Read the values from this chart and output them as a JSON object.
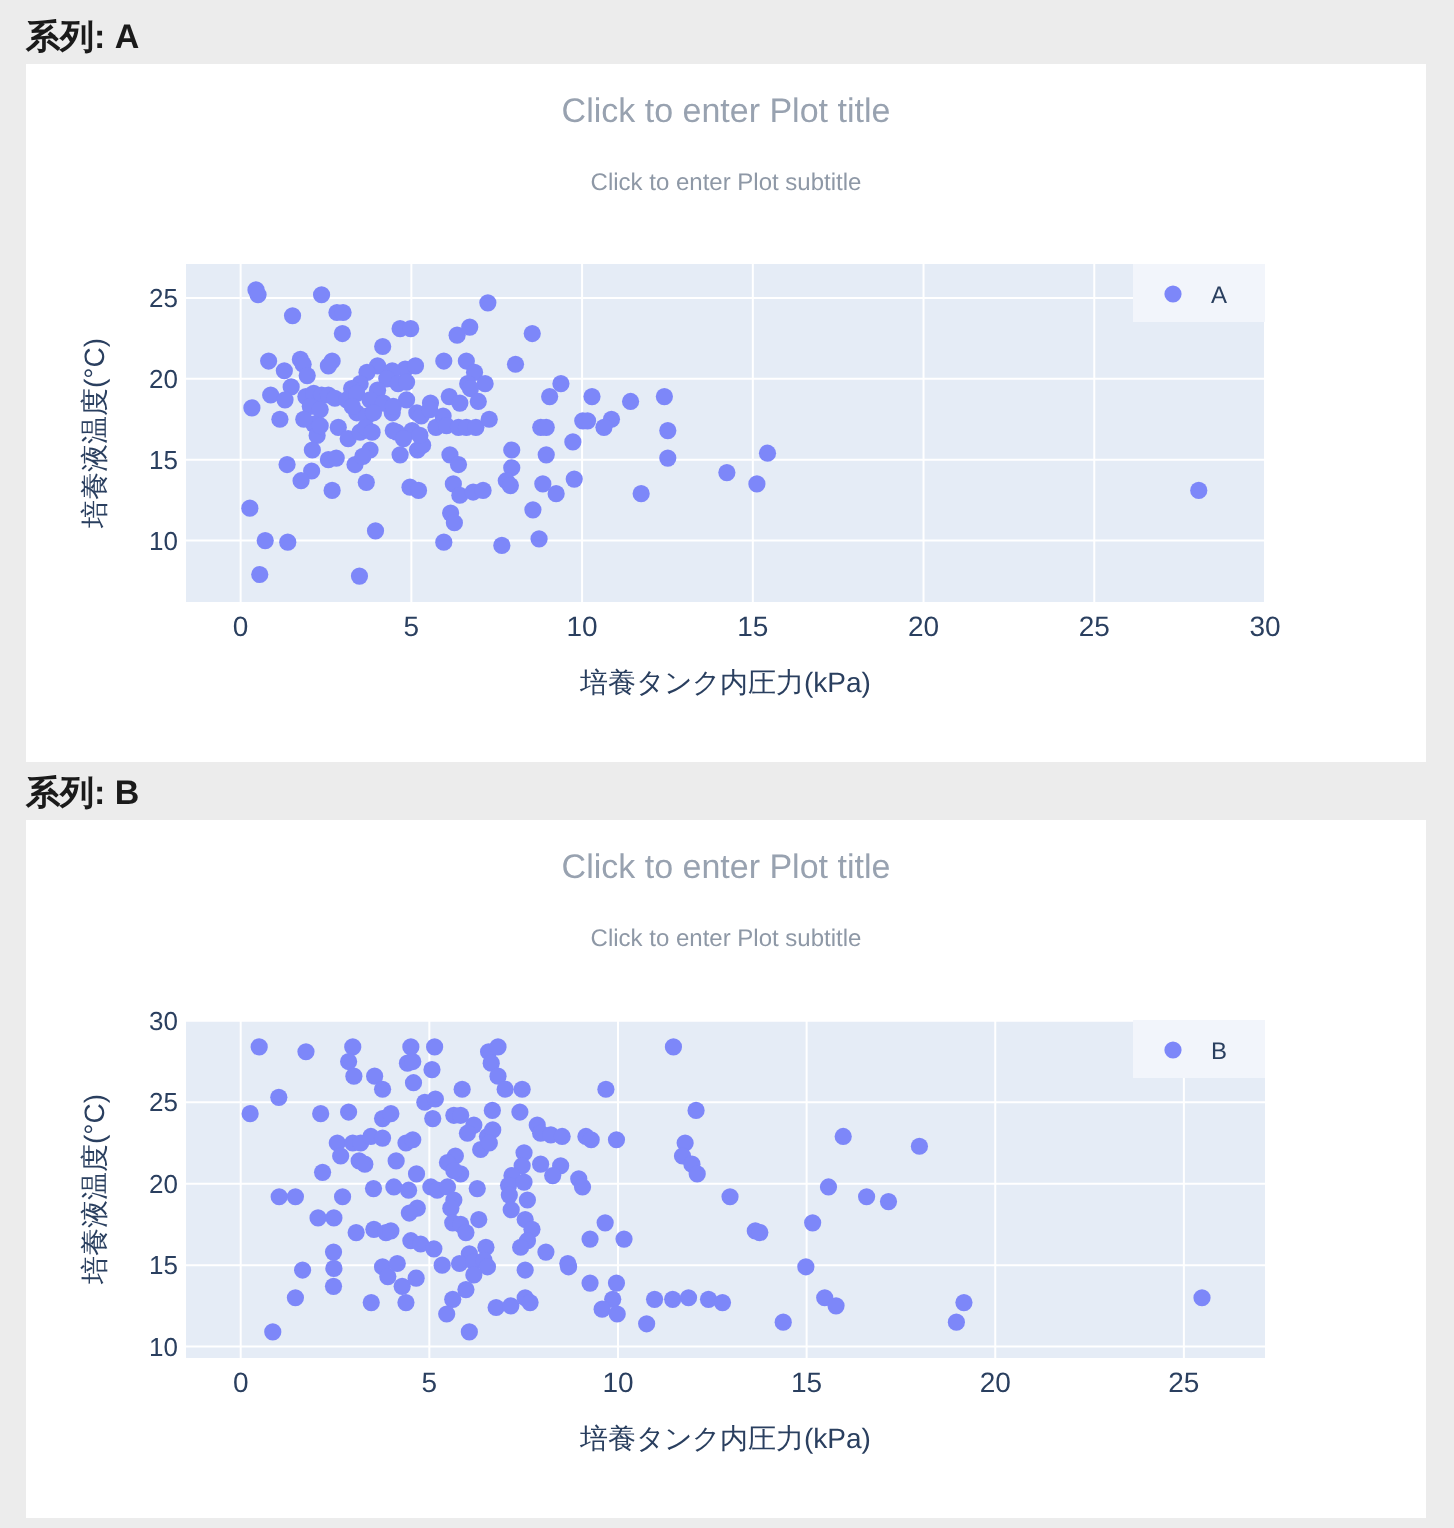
{
  "chart_data": [
    {
      "type": "scatter",
      "title": "Click to enter Plot title",
      "subtitle": "Click to enter Plot subtitle",
      "xlabel": "培養タンク内圧力(kPa)",
      "ylabel": "培養液温度(°C)",
      "annotations": [
        "系列: A"
      ],
      "xlim": [
        -1.6,
        30
      ],
      "ylim": [
        6.2,
        27.1
      ],
      "xticks": [
        0,
        5,
        10,
        15,
        20,
        25,
        30
      ],
      "yticks": [
        10,
        15,
        20,
        25
      ],
      "grid": true,
      "legend": "top right",
      "marker": "circle",
      "series": [
        {
          "name": "A",
          "color": "#7d87f9",
          "x": [
            0.45,
            0.51,
            2.37,
            1.52,
            2.82,
            3.0,
            7.24,
            4.67,
            4.98,
            2.98,
            6.34,
            6.71,
            8.54,
            4.16,
            0.82,
            1.75,
            1.83,
            1.28,
            2.68,
            2.57,
            4.01,
            3.7,
            4.82,
            5.12,
            5.95,
            6.61,
            6.85,
            8.05,
            1.95,
            4.44,
            1.48,
            0.88,
            1.3,
            3.5,
            3.25,
            4.28,
            4.61,
            4.86,
            6.65,
            7.16,
            6.73,
            9.38,
            9.05,
            1.91,
            2.14,
            2.37,
            2.57,
            2.76,
            6.11,
            5.56,
            6.42,
            6.96,
            4.01,
            4.86,
            3.11,
            0.33,
            1.15,
            2.04,
            2.33,
            2.14,
            2.86,
            3.4,
            3.7,
            4.44,
            5.16,
            5.29,
            5.72,
            5.93,
            6.03,
            6.38,
            6.61,
            6.89,
            7.28,
            8.79,
            8.95,
            4.47,
            5.02,
            2.24,
            3.15,
            3.5,
            3.79,
            4.67,
            5.18,
            2.1,
            6.13,
            7.94,
            8.95,
            9.73,
            2.57,
            2.8,
            3.35,
            3.58,
            5.33,
            1.36,
            2.08,
            1.77,
            2.68,
            3.68,
            4.96,
            5.21,
            6.38,
            6.23,
            6.42,
            6.81,
            7.1,
            7.94,
            7.78,
            7.9,
            8.85,
            9.24,
            9.77,
            0.27,
            6.15,
            6.26,
            8.56,
            3.95,
            0.72,
            1.38,
            5.95,
            7.65,
            8.74,
            0.56,
            3.48,
            3.4,
            3.79,
            4.18,
            3.27,
            3.89,
            3.66,
            3.85,
            4.57,
            5.25,
            4.77,
            2.33,
            1.85,
            4.47,
            5.54,
            10.29,
            10.02,
            10.16,
            10.86,
            10.64,
            11.42,
            12.41,
            12.51,
            12.51,
            11.73,
            14.24,
            15.12,
            15.43,
            28.06
          ],
          "values": [
            25.5,
            25.2,
            25.2,
            23.9,
            24.1,
            24.1,
            24.7,
            23.1,
            23.1,
            22.8,
            22.7,
            23.2,
            22.8,
            22.0,
            21.1,
            21.2,
            20.9,
            20.5,
            21.1,
            20.8,
            20.8,
            20.4,
            20.6,
            20.8,
            21.1,
            21.1,
            20.4,
            20.9,
            20.2,
            20.5,
            19.5,
            19.0,
            18.7,
            19.7,
            19.4,
            20.0,
            19.7,
            19.8,
            19.7,
            19.7,
            19.4,
            19.7,
            18.9,
            18.9,
            19.1,
            19.0,
            19.0,
            18.8,
            18.9,
            18.5,
            18.5,
            18.6,
            19.3,
            18.7,
            18.7,
            18.2,
            17.5,
            18.3,
            18.1,
            17.2,
            17.0,
            17.9,
            17.7,
            17.9,
            17.9,
            17.7,
            17.0,
            17.7,
            17.1,
            17.0,
            17.0,
            17.0,
            17.5,
            17.0,
            17.0,
            16.8,
            16.8,
            16.5,
            16.3,
            16.7,
            15.6,
            15.3,
            15.6,
            15.6,
            15.3,
            15.6,
            15.3,
            16.1,
            15.0,
            15.1,
            14.7,
            15.2,
            15.9,
            14.7,
            14.3,
            13.7,
            13.1,
            13.6,
            13.3,
            13.1,
            14.7,
            13.5,
            12.8,
            13.0,
            13.1,
            14.5,
            13.7,
            13.4,
            13.5,
            12.9,
            13.8,
            12.0,
            11.7,
            11.1,
            11.9,
            10.6,
            10.0,
            9.9,
            9.9,
            9.7,
            10.1,
            7.9,
            7.8,
            19.1,
            18.7,
            18.5,
            18.3,
            17.9,
            17.0,
            16.7,
            16.7,
            16.5,
            16.3,
            17.1,
            17.5,
            18.3,
            18.1,
            18.9,
            17.4,
            17.4,
            17.5,
            17.0,
            18.6,
            18.9,
            16.8,
            15.1,
            12.9,
            14.2,
            13.5,
            15.4,
            13.1
          ]
        }
      ]
    },
    {
      "type": "scatter",
      "title": "Click to enter Plot title",
      "subtitle": "Click to enter Plot subtitle",
      "xlabel": "培養タンク内圧力(kPa)",
      "ylabel": "培養液温度(°C)",
      "annotations": [
        "系列: B"
      ],
      "xlim": [
        -1.45,
        27.15
      ],
      "ylim": [
        9.3,
        30.05
      ],
      "xticks": [
        0,
        5,
        10,
        15,
        20,
        25
      ],
      "yticks": [
        10,
        15,
        20,
        25,
        30
      ],
      "grid": true,
      "legend": "top right",
      "marker": "circle",
      "series": [
        {
          "name": "B",
          "color": "#7d87f9",
          "x": [
            0.49,
            1.73,
            2.97,
            2.86,
            3.0,
            3.55,
            3.76,
            4.51,
            4.42,
            4.56,
            4.58,
            5.14,
            5.07,
            4.88,
            5.16,
            5.09,
            6.57,
            6.82,
            6.64,
            6.82,
            7.01,
            7.46,
            5.87,
            1.01,
            0.25,
            2.12,
            2.86,
            3.76,
            3.98,
            5.65,
            5.83,
            6.67,
            7.4,
            6.18,
            6.01,
            6.54,
            6.68,
            7.86,
            7.95,
            8.22,
            8.52,
            2.56,
            2.97,
            3.18,
            3.45,
            3.76,
            2.65,
            3.14,
            3.29,
            4.12,
            4.38,
            4.56,
            6.36,
            6.59,
            5.69,
            5.48,
            7.51,
            7.46,
            7.95,
            8.48,
            2.17,
            4.66,
            5.83,
            5.65,
            7.19,
            7.1,
            7.51,
            8.27,
            1.02,
            1.45,
            2.7,
            3.52,
            4.06,
            4.45,
            5.04,
            5.21,
            5.48,
            6.27,
            5.65,
            5.57,
            4.68,
            4.47,
            7.12,
            7.6,
            7.17,
            2.05,
            2.47,
            3.06,
            3.53,
            3.85,
            3.98,
            5.62,
            5.83,
            5.97,
            6.31,
            7.54,
            7.72,
            7.6,
            7.42,
            4.51,
            4.77,
            5.12,
            6.06,
            6.5,
            8.09,
            8.67,
            2.46,
            2.47,
            2.46,
            1.64,
            1.45,
            3.46,
            3.76,
            3.9,
            4.15,
            4.28,
            4.38,
            4.65,
            5.34,
            5.8,
            6.18,
            6.45,
            6.54,
            6.18,
            5.97,
            5.62,
            5.46,
            6.06,
            6.77,
            7.16,
            7.54,
            7.54,
            7.67,
            0.85,
            11.47,
            9.68,
            12.07,
            9.15,
            9.29,
            9.96,
            11.78,
            11.71,
            11.96,
            12.1,
            8.96,
            9.06,
            12.97,
            15.97,
            17.99,
            15.58,
            16.59,
            17.17,
            9.66,
            9.26,
            10.16,
            13.64,
            13.76,
            15.16,
            8.69,
            9.26,
            9.96,
            9.86,
            9.58,
            9.98,
            10.76,
            10.97,
            11.45,
            11.87,
            12.4,
            12.77,
            14.38,
            14.98,
            15.48,
            15.78,
            18.97,
            19.17,
            25.48
          ],
          "values": [
            28.4,
            28.1,
            28.4,
            27.5,
            26.6,
            26.6,
            25.8,
            28.4,
            27.4,
            27.5,
            26.2,
            28.4,
            27.0,
            25.0,
            25.2,
            24.0,
            28.1,
            28.4,
            27.4,
            26.6,
            25.8,
            25.8,
            25.8,
            25.3,
            24.3,
            24.3,
            24.4,
            24.0,
            24.3,
            24.2,
            24.2,
            24.5,
            24.4,
            23.6,
            23.1,
            22.9,
            23.3,
            23.6,
            23.1,
            23.0,
            22.9,
            22.5,
            22.5,
            22.5,
            22.9,
            22.8,
            21.7,
            21.4,
            21.2,
            21.4,
            22.5,
            22.7,
            22.1,
            22.5,
            21.7,
            21.3,
            21.9,
            21.1,
            21.2,
            21.1,
            20.7,
            20.6,
            20.6,
            20.8,
            20.5,
            19.9,
            20.1,
            20.5,
            19.2,
            19.2,
            19.2,
            19.7,
            19.8,
            19.6,
            19.8,
            19.6,
            19.8,
            19.7,
            19.0,
            18.5,
            18.5,
            18.2,
            19.3,
            19.0,
            18.4,
            17.9,
            17.9,
            17.0,
            17.2,
            17.0,
            17.1,
            17.6,
            17.5,
            17.0,
            17.8,
            17.8,
            17.2,
            16.5,
            16.1,
            16.5,
            16.3,
            16.0,
            15.7,
            16.1,
            15.8,
            15.1,
            15.8,
            14.8,
            13.7,
            14.7,
            13.0,
            12.7,
            14.9,
            14.3,
            15.1,
            13.7,
            12.7,
            14.2,
            15.0,
            15.1,
            15.2,
            15.3,
            14.9,
            14.4,
            13.5,
            12.9,
            12.0,
            10.9,
            12.4,
            12.5,
            14.7,
            13.0,
            12.7,
            10.9,
            28.4,
            25.8,
            24.5,
            22.9,
            22.7,
            22.7,
            22.5,
            21.7,
            21.2,
            20.6,
            20.3,
            19.8,
            19.2,
            22.9,
            22.3,
            19.8,
            19.2,
            18.9,
            17.6,
            16.6,
            16.6,
            17.1,
            17.0,
            17.6,
            14.9,
            13.9,
            13.9,
            12.9,
            12.3,
            12.0,
            11.4,
            12.9,
            12.9,
            13.0,
            12.9,
            12.7,
            11.5,
            14.9,
            13.0,
            12.5,
            11.5,
            12.7,
            13.0
          ]
        }
      ]
    }
  ]
}
